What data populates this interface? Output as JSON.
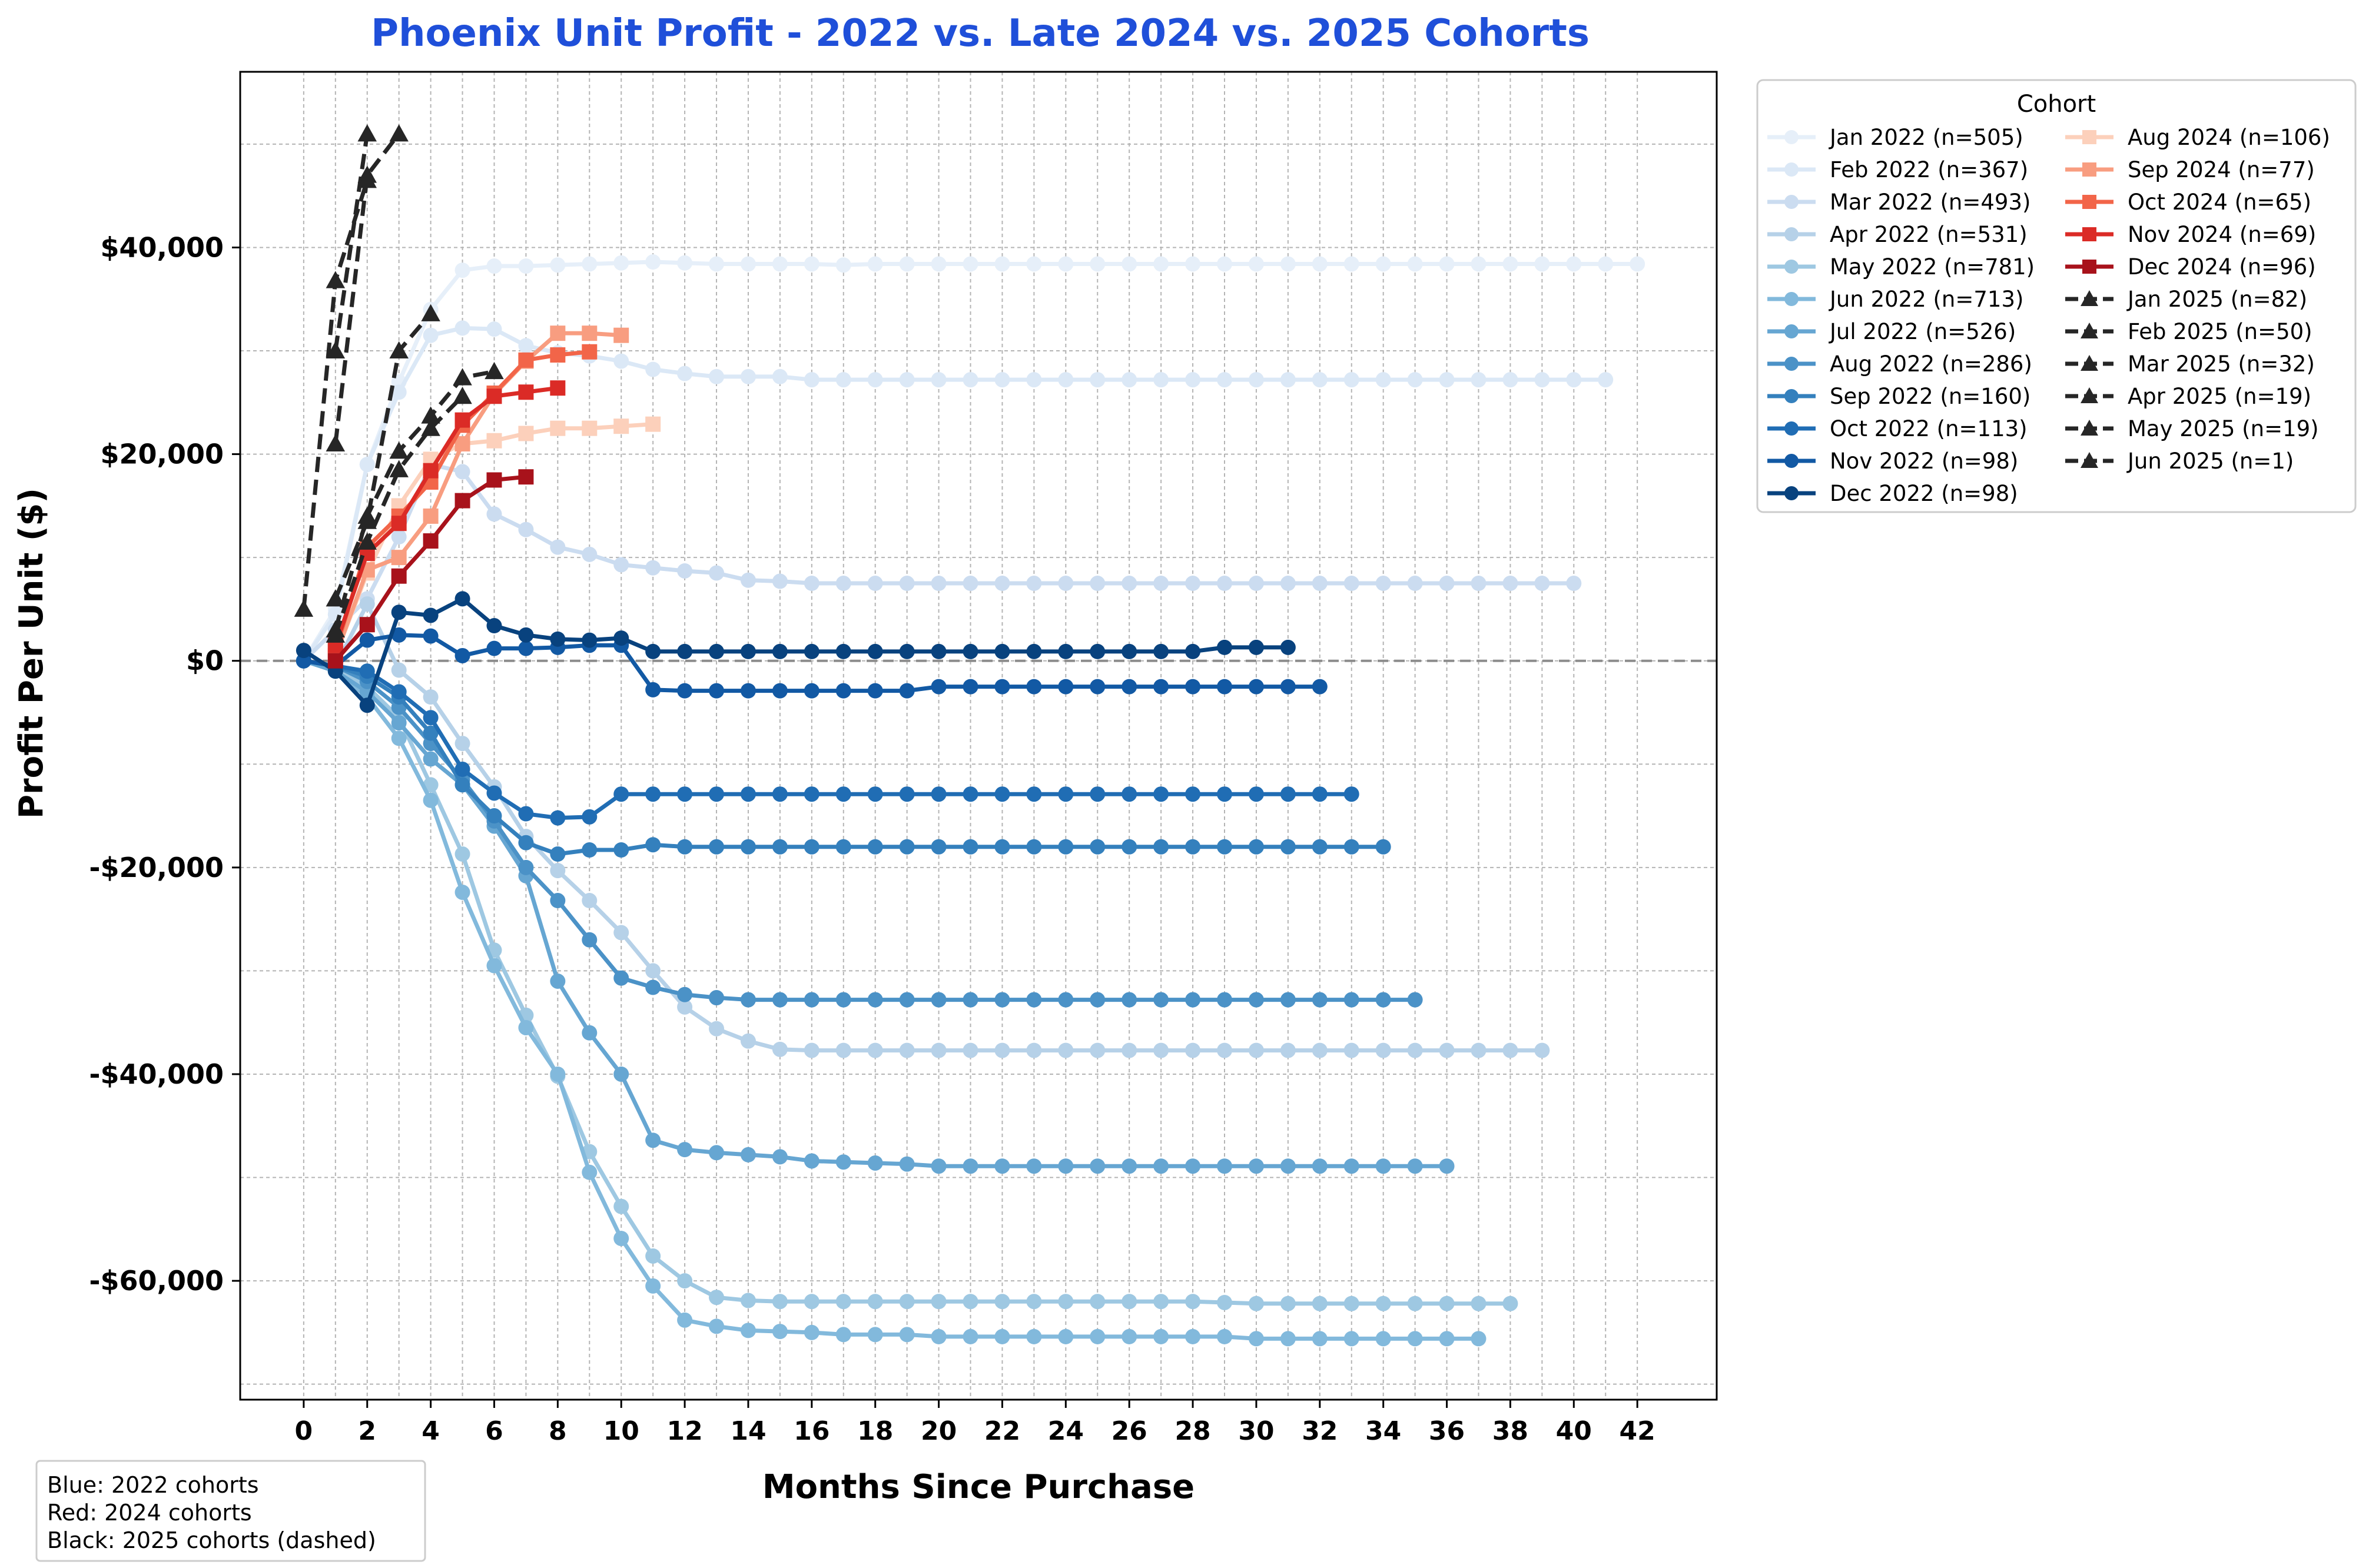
{
  "chart_data": {
    "type": "line",
    "title": "Phoenix Unit Profit - 2022 vs. Late 2024 vs. 2025 Cohorts",
    "xlabel": "Months Since Purchase",
    "ylabel": "Profit Per Unit ($)",
    "xlim": [
      -2,
      44.5
    ],
    "ylim": [
      -71500,
      57000
    ],
    "xticks": [
      0,
      2,
      4,
      6,
      8,
      10,
      12,
      14,
      16,
      18,
      20,
      22,
      24,
      26,
      28,
      30,
      32,
      34,
      36,
      38,
      40,
      42
    ],
    "yticks": [
      {
        "value": 40000,
        "label": "$40,000"
      },
      {
        "value": 20000,
        "label": "$20,000"
      },
      {
        "value": 0,
        "label": "$0"
      },
      {
        "value": -20000,
        "label": "-$20,000"
      },
      {
        "value": -40000,
        "label": "-$40,000"
      },
      {
        "value": -60000,
        "label": "-$60,000"
      }
    ],
    "grid": true,
    "zero_line": true,
    "legend_title": "Cohort",
    "legend_position": "outside-top-right",
    "colors": {
      "title": "#1f4fd9",
      "zero_line": "#8c8c8c",
      "grid": "#b4b4b4"
    },
    "series": [
      {
        "name": "Jan 2022 (n=505)",
        "group": "2022",
        "color": "#e6eff9",
        "marker": "circle",
        "dash": false,
        "values": [
          0.0,
          5000,
          19000,
          27000,
          34000,
          37800,
          38200,
          38200,
          38300,
          38400,
          38500,
          38600,
          38500,
          38400,
          38400,
          38400,
          38400,
          38300,
          38400,
          38400,
          38400,
          38400,
          38400,
          38400,
          38400,
          38400,
          38400,
          38400,
          38400,
          38400,
          38400,
          38400,
          38400,
          38400,
          38400,
          38400,
          38400,
          38400,
          38400,
          38400,
          38400,
          38400,
          38400
        ]
      },
      {
        "name": "Feb 2022 (n=367)",
        "group": "2022",
        "color": "#dbe8f6",
        "marker": "circle",
        "dash": false,
        "values": [
          0.0,
          4500,
          19000,
          26000,
          31500,
          32200,
          32100,
          30500,
          29800,
          29500,
          29000,
          28200,
          27800,
          27500,
          27500,
          27500,
          27200,
          27200,
          27200,
          27200,
          27200,
          27200,
          27200,
          27200,
          27200,
          27200,
          27200,
          27200,
          27200,
          27200,
          27200,
          27200,
          27200,
          27200,
          27200,
          27200,
          27200,
          27200,
          27200,
          27200,
          27200,
          27200
        ]
      },
      {
        "name": "Mar 2022 (n=493)",
        "group": "2022",
        "color": "#cbdcf0",
        "marker": "circle",
        "dash": false,
        "values": [
          0.0,
          3000,
          6000,
          12000,
          19000,
          18300,
          14200,
          12700,
          11000,
          10300,
          9300,
          9000,
          8700,
          8500,
          7800,
          7700,
          7500,
          7500,
          7500,
          7500,
          7500,
          7500,
          7500,
          7500,
          7500,
          7500,
          7500,
          7500,
          7500,
          7500,
          7500,
          7500,
          7500,
          7500,
          7500,
          7500,
          7500,
          7500,
          7500,
          7500,
          7500
        ]
      },
      {
        "name": "Apr 2022 (n=531)",
        "group": "2022",
        "color": "#b6d1e8",
        "marker": "circle",
        "dash": false,
        "values": [
          0.0,
          -500,
          5500,
          -900,
          -3500,
          -8000,
          -12200,
          -17000,
          -20300,
          -23200,
          -26300,
          -30000,
          -33500,
          -35600,
          -36800,
          -37600,
          -37700,
          -37700,
          -37700,
          -37700,
          -37700,
          -37700,
          -37700,
          -37700,
          -37700,
          -37700,
          -37700,
          -37700,
          -37700,
          -37700,
          -37700,
          -37700,
          -37700,
          -37700,
          -37700,
          -37700,
          -37700,
          -37700,
          -37700,
          -37700
        ]
      },
      {
        "name": "May 2022 (n=781)",
        "group": "2022",
        "color": "#9ec8e2",
        "marker": "circle",
        "dash": false,
        "values": [
          0.0,
          -800,
          -2500,
          -5500,
          -12000,
          -18700,
          -28000,
          -34300,
          -40200,
          -47500,
          -52800,
          -57600,
          -60000,
          -61600,
          -61900,
          -62000,
          -62000,
          -62000,
          -62000,
          -62000,
          -62000,
          -62000,
          -62000,
          -62000,
          -62000,
          -62000,
          -62000,
          -62000,
          -62000,
          -62100,
          -62200,
          -62200,
          -62200,
          -62200,
          -62200,
          -62200,
          -62200,
          -62200,
          -62200
        ]
      },
      {
        "name": "Jun 2022 (n=713)",
        "group": "2022",
        "color": "#82b9dc",
        "marker": "circle",
        "dash": false,
        "values": [
          0.0,
          -1000,
          -3500,
          -7500,
          -13500,
          -22400,
          -29500,
          -35500,
          -40000,
          -49500,
          -55900,
          -60500,
          -63800,
          -64400,
          -64800,
          -64900,
          -65000,
          -65200,
          -65200,
          -65200,
          -65400,
          -65400,
          -65400,
          -65400,
          -65400,
          -65400,
          -65400,
          -65400,
          -65400,
          -65400,
          -65600,
          -65600,
          -65600,
          -65600,
          -65600,
          -65600,
          -65600,
          -65600
        ]
      },
      {
        "name": "Jul 2022 (n=526)",
        "group": "2022",
        "color": "#66a6d2",
        "marker": "circle",
        "dash": false,
        "values": [
          0.0,
          -1000,
          -3000,
          -6000,
          -9500,
          -12000,
          -16000,
          -20800,
          -31000,
          -36000,
          -40000,
          -46400,
          -47300,
          -47600,
          -47800,
          -48000,
          -48400,
          -48500,
          -48600,
          -48700,
          -48900,
          -48900,
          -48900,
          -48900,
          -48900,
          -48900,
          -48900,
          -48900,
          -48900,
          -48900,
          -48900,
          -48900,
          -48900,
          -48900,
          -48900,
          -48900,
          -48900
        ]
      },
      {
        "name": "Aug 2022 (n=286)",
        "group": "2022",
        "color": "#4b92c7",
        "marker": "circle",
        "dash": false,
        "values": [
          0.0,
          -500,
          -2000,
          -4500,
          -8000,
          -11500,
          -15500,
          -20000,
          -23200,
          -27000,
          -30700,
          -31600,
          -32300,
          -32600,
          -32800,
          -32800,
          -32800,
          -32800,
          -32800,
          -32800,
          -32800,
          -32800,
          -32800,
          -32800,
          -32800,
          -32800,
          -32800,
          -32800,
          -32800,
          -32800,
          -32800,
          -32800,
          -32800,
          -32800,
          -32800,
          -32800
        ]
      },
      {
        "name": "Sep 2022 (n=160)",
        "group": "2022",
        "color": "#3480bd",
        "marker": "circle",
        "dash": false,
        "values": [
          0.0,
          -500,
          -1500,
          -3500,
          -7000,
          -12000,
          -15000,
          -17600,
          -18700,
          -18300,
          -18300,
          -17800,
          -18000,
          -18000,
          -18000,
          -18000,
          -18000,
          -18000,
          -18000,
          -18000,
          -18000,
          -18000,
          -18000,
          -18000,
          -18000,
          -18000,
          -18000,
          -18000,
          -18000,
          -18000,
          -18000,
          -18000,
          -18000,
          -18000,
          -18000
        ]
      },
      {
        "name": "Oct 2022 (n=113)",
        "group": "2022",
        "color": "#206db4",
        "marker": "circle",
        "dash": false,
        "values": [
          0.0,
          -500,
          -1000,
          -3000,
          -5500,
          -10500,
          -12800,
          -14800,
          -15200,
          -15100,
          -12900,
          -12900,
          -12900,
          -12900,
          -12900,
          -12900,
          -12900,
          -12900,
          -12900,
          -12900,
          -12900,
          -12900,
          -12900,
          -12900,
          -12900,
          -12900,
          -12900,
          -12900,
          -12900,
          -12900,
          -12900,
          -12900,
          -12900,
          -12900
        ]
      },
      {
        "name": "Nov 2022 (n=98)",
        "group": "2022",
        "color": "#1259a4",
        "marker": "circle",
        "dash": false,
        "values": [
          0.0,
          -500,
          2000,
          2500,
          2400,
          500,
          1200,
          1200,
          1300,
          1500,
          1500,
          -2800,
          -2900,
          -2900,
          -2900,
          -2900,
          -2900,
          -2900,
          -2900,
          -2900,
          -2500,
          -2500,
          -2500,
          -2500,
          -2500,
          -2500,
          -2500,
          -2500,
          -2500,
          -2500,
          -2500,
          -2500,
          -2500
        ]
      },
      {
        "name": "Dec 2022 (n=98)",
        "group": "2022",
        "color": "#08427e",
        "marker": "circle",
        "dash": false,
        "values": [
          1000,
          -1000,
          -4300,
          4700,
          4400,
          6000,
          3400,
          2500,
          2100,
          2000,
          2200,
          900,
          900,
          900,
          900,
          900,
          900,
          900,
          900,
          900,
          900,
          900,
          900,
          900,
          900,
          900,
          900,
          900,
          900,
          1300,
          1300,
          1300
        ]
      },
      {
        "name": "Aug 2024 (n=106)",
        "group": "2024",
        "color": "#fcd0bb",
        "marker": "square",
        "dash": false,
        "values": [
          null,
          500,
          8500,
          15000,
          19500,
          21000,
          21300,
          22000,
          22500,
          22500,
          22700,
          22900
        ]
      },
      {
        "name": "Sep 2024 (n=77)",
        "group": "2024",
        "color": "#f89d80",
        "marker": "square",
        "dash": false,
        "values": [
          null,
          500,
          8800,
          10000,
          14000,
          21000,
          25800,
          29000,
          31700,
          31700,
          31500
        ]
      },
      {
        "name": "Oct 2024 (n=65)",
        "group": "2024",
        "color": "#f26549",
        "marker": "square",
        "dash": false,
        "values": [
          null,
          1000,
          11000,
          14000,
          17300,
          22800,
          25900,
          29100,
          29600,
          29900
        ]
      },
      {
        "name": "Nov 2024 (n=69)",
        "group": "2024",
        "color": "#db2b26",
        "marker": "square",
        "dash": false,
        "values": [
          null,
          1500,
          10400,
          13300,
          18400,
          23300,
          25600,
          26000,
          26400
        ]
      },
      {
        "name": "Dec 2024 (n=96)",
        "group": "2024",
        "color": "#a8121b",
        "marker": "square",
        "dash": false,
        "values": [
          null,
          0,
          3500,
          8200,
          11600,
          15500,
          17500,
          17800
        ]
      },
      {
        "name": "Jan 2025 (n=82)",
        "group": "2025",
        "color": "#262626",
        "marker": "triangle",
        "dash": true,
        "values": [
          null,
          3000,
          14000,
          20300,
          23700,
          27400,
          28000
        ]
      },
      {
        "name": "Feb 2025 (n=50)",
        "group": "2025",
        "color": "#262626",
        "marker": "triangle",
        "dash": true,
        "values": [
          null,
          2500,
          11500,
          18500,
          22500,
          25600
        ]
      },
      {
        "name": "Mar 2025 (n=32)",
        "group": "2025",
        "color": "#262626",
        "marker": "triangle",
        "dash": true,
        "values": [
          null,
          6000,
          13500,
          30000,
          33600
        ]
      },
      {
        "name": "Apr 2025 (n=19)",
        "group": "2025",
        "color": "#262626",
        "marker": "triangle",
        "dash": true,
        "values": [
          null,
          21000,
          47000,
          51000
        ]
      },
      {
        "name": "May 2025 (n=19)",
        "group": "2025",
        "color": "#262626",
        "marker": "triangle",
        "dash": true,
        "values": [
          null,
          30000,
          51000
        ]
      },
      {
        "name": "Jun 2025 (n=1)",
        "group": "2025",
        "color": "#262626",
        "marker": "triangle",
        "dash": true,
        "values": [
          5000,
          36800,
          46500
        ]
      }
    ],
    "annotation_lines": [
      "Blue: 2022 cohorts",
      "Red: 2024 cohorts",
      "Black: 2025 cohorts (dashed)"
    ]
  }
}
